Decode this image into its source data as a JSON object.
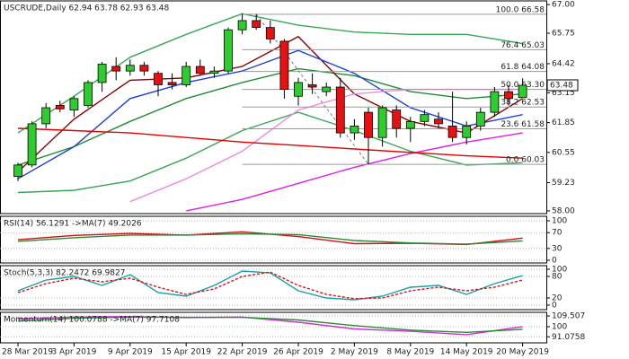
{
  "chart_data": [
    {
      "type": "candlestick",
      "title": "USCRUDE,Daily  62.94 63.78 62.93 63.48",
      "up_color": "#2ecc2e",
      "down_color": "#e81010",
      "categories": [
        "28 Mar 2019",
        null,
        null,
        null,
        "3 Apr 2019",
        null,
        null,
        null,
        "9 Apr 2019",
        null,
        null,
        null,
        "15 Apr 2019",
        null,
        null,
        null,
        "22 Apr 2019",
        null,
        null,
        null,
        "26 Apr 2019",
        null,
        null,
        null,
        "2 May 2019",
        null,
        null,
        null,
        "8 May 2019",
        null,
        null,
        null,
        "14 May 2019",
        null,
        null,
        null,
        "20 May 2019"
      ],
      "ohlc": [
        [
          59.5,
          60.1,
          59.3,
          60.0
        ],
        [
          60.0,
          61.9,
          59.9,
          61.8
        ],
        [
          61.8,
          62.7,
          61.6,
          62.5
        ],
        [
          62.6,
          62.8,
          62.3,
          62.45
        ],
        [
          62.4,
          63.0,
          62.1,
          62.9
        ],
        [
          62.6,
          63.7,
          62.5,
          63.6
        ],
        [
          63.6,
          64.5,
          63.2,
          64.4
        ],
        [
          64.3,
          64.7,
          63.7,
          64.1
        ],
        [
          64.1,
          64.6,
          63.9,
          64.35
        ],
        [
          64.35,
          64.5,
          63.9,
          64.1
        ],
        [
          64.0,
          64.1,
          63.0,
          63.5
        ],
        [
          63.6,
          64.0,
          63.3,
          63.5
        ],
        [
          63.5,
          64.5,
          63.4,
          64.3
        ],
        [
          64.3,
          64.6,
          63.9,
          64.0
        ],
        [
          64.0,
          64.3,
          63.8,
          64.1
        ],
        [
          64.1,
          66.0,
          64.0,
          65.9
        ],
        [
          65.9,
          66.6,
          65.7,
          66.3
        ],
        [
          66.3,
          66.58,
          65.9,
          66.0
        ],
        [
          66.0,
          66.3,
          65.3,
          65.5
        ],
        [
          65.4,
          65.5,
          62.9,
          63.3
        ],
        [
          63.0,
          63.8,
          62.6,
          63.6
        ],
        [
          63.5,
          64.0,
          63.1,
          63.4
        ],
        [
          63.2,
          63.6,
          63.0,
          63.4
        ],
        [
          63.4,
          63.8,
          61.2,
          61.4
        ],
        [
          61.4,
          62.0,
          61.1,
          61.7
        ],
        [
          62.3,
          62.5,
          60.03,
          61.2
        ],
        [
          61.2,
          62.6,
          60.8,
          62.5
        ],
        [
          62.4,
          62.6,
          61.2,
          61.6
        ],
        [
          61.6,
          62.1,
          61.0,
          61.9
        ],
        [
          61.9,
          62.4,
          61.7,
          62.2
        ],
        [
          62.0,
          62.3,
          61.6,
          61.8
        ],
        [
          61.7,
          63.2,
          61.0,
          61.2
        ],
        [
          61.2,
          61.9,
          60.9,
          61.7
        ],
        [
          61.7,
          62.5,
          61.5,
          62.3
        ],
        [
          62.3,
          63.4,
          62.1,
          63.2
        ],
        [
          63.2,
          63.5,
          62.6,
          62.9
        ],
        [
          62.94,
          63.78,
          62.93,
          63.48
        ]
      ],
      "x": [
        0,
        4,
        8,
        12,
        16,
        20,
        24,
        28,
        32,
        36
      ],
      "series": [
        {
          "color": "#3aa655",
          "values": [
            61.4,
            63.0,
            64.7,
            65.7,
            66.6,
            66.1,
            65.8,
            65.7,
            65.7,
            65.3
          ]
        },
        {
          "color": "#3aa655",
          "values": [
            58.8,
            58.9,
            59.3,
            60.3,
            61.5,
            62.3,
            61.5,
            60.6,
            60.0,
            60.1
          ]
        },
        {
          "color": "#1f8c35",
          "values": [
            60.0,
            60.8,
            61.9,
            62.9,
            63.6,
            64.2,
            63.9,
            63.2,
            62.9,
            63.1
          ]
        },
        {
          "color": "#8b0000",
          "values": [
            59.7,
            62.0,
            63.7,
            63.8,
            64.3,
            65.6,
            63.1,
            61.9,
            61.4,
            62.9
          ]
        },
        {
          "color": "#1f3fd8",
          "values": [
            59.4,
            60.8,
            62.9,
            63.6,
            64.1,
            65.0,
            64.0,
            62.5,
            61.7,
            62.2
          ]
        },
        {
          "color": "#f08ce0",
          "values": [
            null,
            null,
            58.4,
            59.4,
            60.6,
            62.4,
            63.1,
            63.3,
            63.3,
            63.3
          ]
        },
        {
          "color": "#e020e0",
          "values": [
            null,
            null,
            null,
            58.0,
            58.5,
            59.2,
            59.9,
            60.5,
            61.0,
            61.4
          ]
        },
        {
          "color": "#e00000",
          "values": [
            61.6,
            61.5,
            61.4,
            61.2,
            61.0,
            60.85,
            60.7,
            60.55,
            60.4,
            60.3
          ]
        }
      ],
      "fib_levels": [
        {
          "value": 66.58,
          "label": "100.0 66.58"
        },
        {
          "value": 65.03,
          "label": "76.4 65.03"
        },
        {
          "value": 64.08,
          "label": "61.8 64.08"
        },
        {
          "value": 63.3,
          "label": "50.0 63.30"
        },
        {
          "value": 62.53,
          "label": "38.2 62.53"
        },
        {
          "value": 61.58,
          "label": "23.6 61.58"
        },
        {
          "value": 60.03,
          "label": "0.0 60.03"
        }
      ],
      "ylim": [
        57.88,
        67.16
      ],
      "yticks": [
        {
          "value": 67,
          "label": "67.00"
        },
        65.75,
        64.42,
        63.15,
        61.85,
        60.55,
        59.23,
        {
          "value": 58,
          "label": "58.00"
        }
      ],
      "grid": false
    },
    {
      "type": "line",
      "title": "RSI(14) 56.1291 ->MA(7) 49.2026",
      "x": [
        0,
        4,
        8,
        12,
        16,
        20,
        24,
        28,
        32,
        36
      ],
      "series": [
        {
          "color": "#d01010",
          "values": [
            52,
            63,
            68,
            64,
            72,
            60,
            42,
            43,
            40,
            56.1291
          ]
        },
        {
          "color": "#2a8a3a",
          "values": [
            48,
            57,
            64,
            64,
            67,
            65,
            50,
            44,
            41,
            49.2026
          ]
        }
      ],
      "ylim": [
        -6.8,
        111.4
      ],
      "yticks": [
        100,
        70,
        30,
        0
      ],
      "grid": true
    },
    {
      "type": "line",
      "title": "Stoch(5,3,3) 82.2472 69.9827",
      "x": [
        0,
        2,
        4,
        6,
        8,
        10,
        12,
        14,
        16,
        18,
        20,
        22,
        24,
        26,
        28,
        30,
        32,
        34,
        36
      ],
      "series": [
        {
          "color": "#1aa0a8",
          "values": [
            40,
            70,
            80,
            55,
            85,
            35,
            25,
            55,
            95,
            90,
            40,
            20,
            15,
            25,
            50,
            55,
            30,
            60,
            82.2472
          ]
        },
        {
          "color": "#e01010",
          "dashed": true,
          "values": [
            35,
            60,
            75,
            65,
            75,
            50,
            30,
            45,
            80,
            92,
            55,
            30,
            18,
            20,
            40,
            50,
            40,
            50,
            69.9827
          ]
        }
      ],
      "ylim": [
        -12.5,
        110
      ],
      "yticks": [
        100,
        80,
        20,
        0
      ],
      "grid": true
    },
    {
      "type": "line",
      "title": "Momentum(14) 100.0788 ->MA(7) 97.7108",
      "x": [
        0,
        4,
        8,
        12,
        16,
        20,
        24,
        28,
        32,
        36
      ],
      "series": [
        {
          "color": "#d030d0",
          "values": [
            107,
            108.5,
            109,
            108,
            108.5,
            104,
            98,
            96,
            93,
            100.0788
          ]
        },
        {
          "color": "#2a8a3a",
          "values": [
            105,
            107.5,
            108.5,
            108.3,
            108.3,
            106,
            101,
            97,
            95,
            97.7108
          ]
        }
      ],
      "ylim": [
        85.75,
        112.7
      ],
      "yticks": [
        109.507,
        100,
        91.0758
      ],
      "grid": true
    }
  ]
}
